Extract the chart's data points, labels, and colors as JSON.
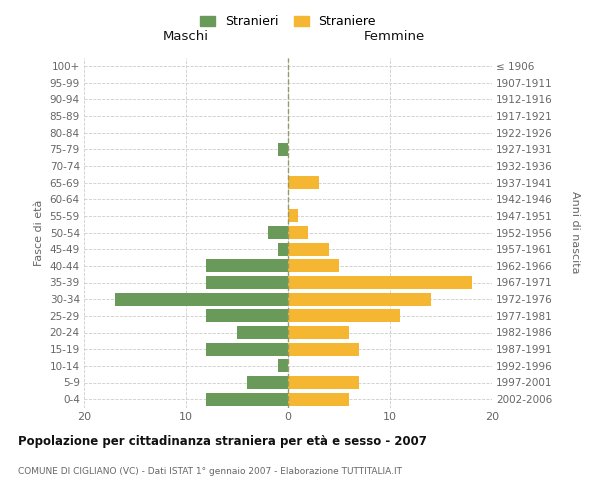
{
  "age_groups": [
    "0-4",
    "5-9",
    "10-14",
    "15-19",
    "20-24",
    "25-29",
    "30-34",
    "35-39",
    "40-44",
    "45-49",
    "50-54",
    "55-59",
    "60-64",
    "65-69",
    "70-74",
    "75-79",
    "80-84",
    "85-89",
    "90-94",
    "95-99",
    "100+"
  ],
  "birth_years": [
    "2002-2006",
    "1997-2001",
    "1992-1996",
    "1987-1991",
    "1982-1986",
    "1977-1981",
    "1972-1976",
    "1967-1971",
    "1962-1966",
    "1957-1961",
    "1952-1956",
    "1947-1951",
    "1942-1946",
    "1937-1941",
    "1932-1936",
    "1927-1931",
    "1922-1926",
    "1917-1921",
    "1912-1916",
    "1907-1911",
    "≤ 1906"
  ],
  "maschi": [
    8,
    4,
    1,
    8,
    5,
    8,
    17,
    8,
    8,
    1,
    2,
    0,
    0,
    0,
    0,
    1,
    0,
    0,
    0,
    0,
    0
  ],
  "femmine": [
    6,
    7,
    0,
    7,
    6,
    11,
    14,
    18,
    5,
    4,
    2,
    1,
    0,
    3,
    0,
    0,
    0,
    0,
    0,
    0,
    0
  ],
  "maschi_color": "#6a9a5a",
  "femmine_color": "#f5b731",
  "title": "Popolazione per cittadinanza straniera per età e sesso - 2007",
  "subtitle": "COMUNE DI CIGLIANO (VC) - Dati ISTAT 1° gennaio 2007 - Elaborazione TUTTITALIA.IT",
  "ylabel_left": "Fasce di età",
  "ylabel_right": "Anni di nascita",
  "label_maschi": "Maschi",
  "label_femmine": "Femmine",
  "legend_stranieri": "Stranieri",
  "legend_straniere": "Straniere",
  "xlim": 20,
  "background_color": "#ffffff",
  "grid_color": "#cccccc",
  "text_color": "#666666",
  "title_color": "#111111",
  "center_line_color": "#999966"
}
